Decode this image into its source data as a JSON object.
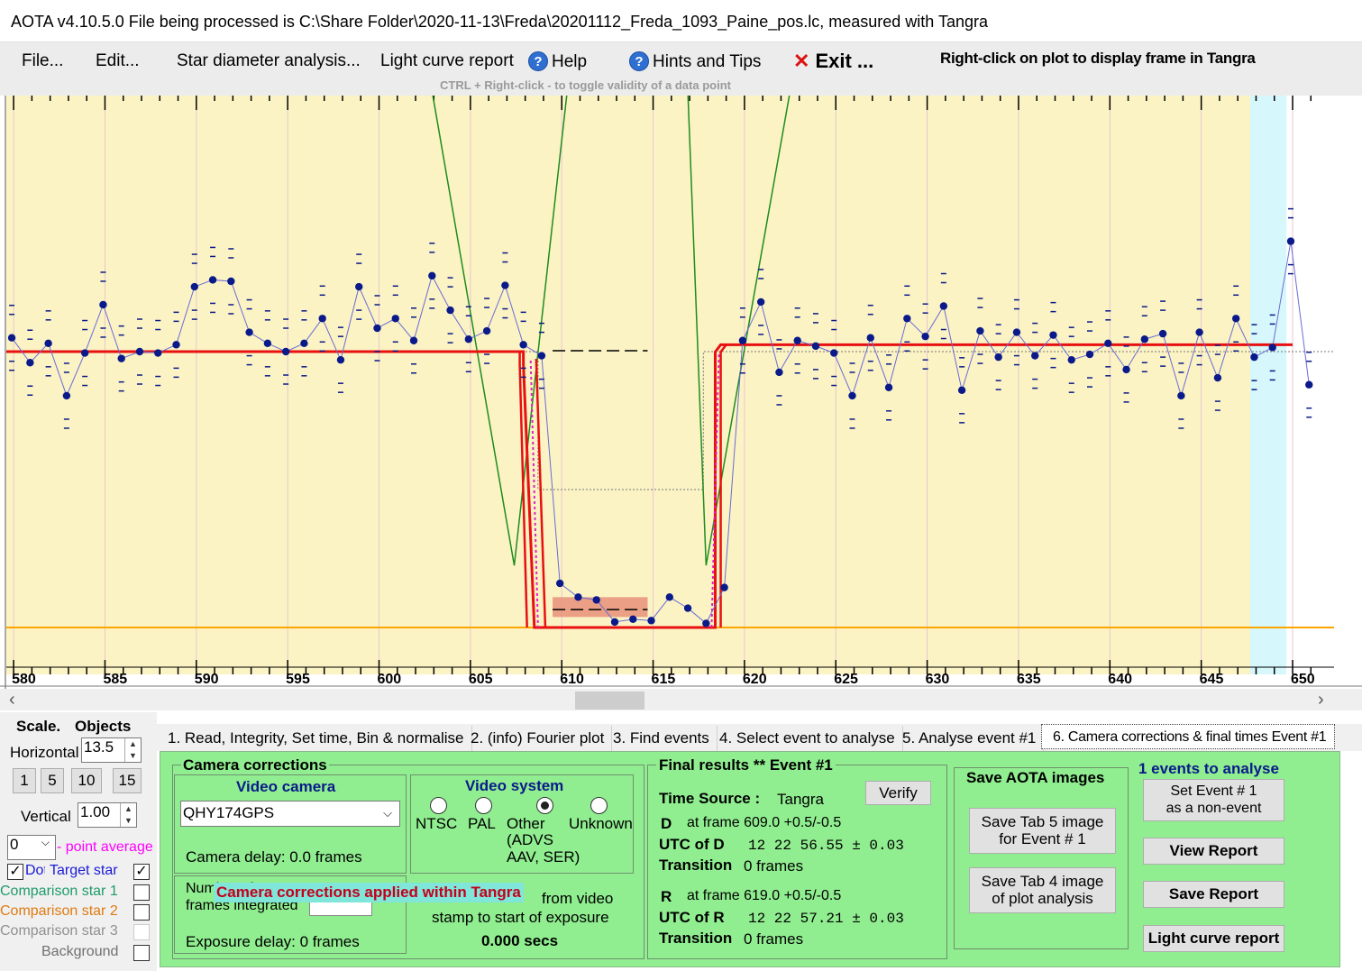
{
  "title": "AOTA v4.10.5.0     File being processed is C:\\Share Folder\\2020-11-13\\Freda\\20201112_Freda_1093_Paine_pos.lc, measured with Tangra",
  "menu": {
    "file": "File...",
    "edit": "Edit...",
    "star_diameter": "Star diameter analysis...",
    "light_curve_report": "Light curve report",
    "help": "Help",
    "hints": "Hints and Tips",
    "exit": "Exit ...",
    "help_icon": "?",
    "exit_icon": "✕"
  },
  "hints": {
    "right_click": "Right-click on plot to display frame in Tangra",
    "ctrl_right_click": "CTRL + Right-click   -  to toggle validity of a data point"
  },
  "chart_data": {
    "type": "line",
    "x_ticks": [
      "580",
      "585",
      "590",
      "595",
      "600",
      "605",
      "610",
      "615",
      "620",
      "625",
      "630",
      "635",
      "640",
      "645",
      "650"
    ],
    "x": [
      579.9,
      580.9,
      581.9,
      582.9,
      583.9,
      584.9,
      585.9,
      586.9,
      587.9,
      588.9,
      589.9,
      590.9,
      591.9,
      592.9,
      593.9,
      594.9,
      595.9,
      596.9,
      597.9,
      598.9,
      599.9,
      600.9,
      601.9,
      602.9,
      603.9,
      604.9,
      605.9,
      606.9,
      607.9,
      608.9,
      609.9,
      610.9,
      611.9,
      612.9,
      613.9,
      614.9,
      615.9,
      616.9,
      617.9,
      618.9,
      619.9,
      620.9,
      621.9,
      622.9,
      623.9,
      624.9,
      625.9,
      626.9,
      627.9,
      628.9,
      629.9,
      630.9,
      631.9,
      632.9,
      633.9,
      634.9,
      635.9,
      636.9,
      637.9,
      638.9,
      639.9,
      640.9,
      641.9,
      642.9,
      643.9,
      644.9,
      645.9,
      646.9,
      647.9,
      648.9,
      649.9,
      650.9
    ],
    "y": [
      1.1,
      0.92,
      1.06,
      0.68,
      0.99,
      1.34,
      0.95,
      1.0,
      0.99,
      1.05,
      1.47,
      1.52,
      1.51,
      1.14,
      1.06,
      1.0,
      1.06,
      1.24,
      0.94,
      1.47,
      1.17,
      1.24,
      1.08,
      1.55,
      1.3,
      1.09,
      1.15,
      1.48,
      1.05,
      0.97,
      -0.68,
      -0.78,
      -0.8,
      -0.96,
      -0.94,
      -0.95,
      -0.78,
      -0.86,
      -0.97,
      -0.71,
      1.08,
      1.36,
      0.85,
      1.08,
      1.04,
      0.99,
      0.68,
      1.1,
      0.74,
      1.24,
      1.11,
      1.33,
      0.72,
      1.15,
      0.96,
      1.14,
      0.97,
      1.12,
      0.94,
      0.98,
      1.06,
      0.87,
      1.09,
      1.13,
      0.68,
      1.14,
      0.81,
      1.24,
      0.96,
      1.03,
      1.8,
      0.76
    ],
    "series": [
      {
        "name": "Target star"
      }
    ],
    "baseline_mean": 1.0,
    "event_bottom_mean": -0.86,
    "zero_level": -1.0,
    "fit": {
      "D_frame": 609.0,
      "R_frame": 619.0,
      "pre_level": 1.0,
      "post_level": 1.05,
      "bottom_level": -1.0
    },
    "colors": {
      "background": "#fbf3c4",
      "highlight": "#d6f7fb",
      "data": "#0a1a8a",
      "fit": "#e81010",
      "model": "#1e8c1e",
      "zero_line": "#ffa500",
      "grid": "#e8c6cf"
    }
  },
  "scale_panel": {
    "scale_label": "Scale.",
    "objects_label": "Objects",
    "horizontal_label": "Horizontal",
    "horizontal_value": "13.5",
    "vertical_label": "Vertical",
    "vertical_value": "1.00",
    "zoom_buttons": [
      "1",
      "5",
      "10",
      "15"
    ],
    "point_average_value": "0",
    "point_average_label": "- point average",
    "dots_label": "Dots",
    "target_star": "Target star",
    "comparison1": "Comparison star 1",
    "comparison2": "Comparison star 2",
    "comparison3": "Comparison star 3",
    "background": "Background",
    "colors": {
      "target": "#1a1ad6",
      "comp1": "#1e9c6a",
      "comp2": "#e07a10",
      "comp3": "#909090",
      "point_avg": "#ff00ff"
    }
  },
  "tabs": [
    "1.  Read, Integrity, Set time, Bin & normalise",
    "2. (info)  Fourier plot",
    "3. Find events",
    "4. Select event to analyse",
    "5. Analyse event #1",
    "6. Camera corrections & final times Event #1"
  ],
  "camera": {
    "heading": "Camera corrections",
    "video_camera_heading": "Video camera",
    "camera_value": "QHY174GPS",
    "camera_delay": "Camera delay: 0.0 frames",
    "video_system_heading": "Video system",
    "systems": [
      "NTSC",
      "PAL",
      "Other",
      "Unknown"
    ],
    "other_note": "(ADVS\nAAV, SER)",
    "frames_integrated_label": "Number of\nframes integrated",
    "applied_banner": "Camera corrections applied within Tangra",
    "exposure_delay": "Exposure delay: 0 frames",
    "offset_line1": "from video",
    "offset_line2": "stamp to start of exposure",
    "offset_value": "0.000 secs"
  },
  "final_results": {
    "heading": "Final results  **  Event #1",
    "verify": "Verify",
    "time_source_label": "Time Source :",
    "time_source_value": "Tangra",
    "d_label": "D",
    "d_frame": "at frame 609.0  +0.5/-0.5",
    "utc_d_label": "UTC of D",
    "utc_d_value": "12 22 56.55  ± 0.03",
    "transition_label": "Transition",
    "transition_d": "0 frames",
    "r_label": "R",
    "r_frame": "at frame 619.0  +0.5/-0.5",
    "utc_r_label": "UTC of R",
    "utc_r_value": "12 22 57.21  ± 0.03",
    "transition_r": "0 frames"
  },
  "save_images": {
    "heading": "Save AOTA images",
    "tab5": "Save Tab 5 image\nfor Event # 1",
    "tab4": "Save Tab 4 image\nof plot analysis"
  },
  "events": {
    "heading": "1  events to analyse",
    "set_non_event": "Set Event # 1\nas a non-event",
    "view_report": "View Report",
    "save_report": "Save Report",
    "light_curve_report": "Light curve report"
  }
}
